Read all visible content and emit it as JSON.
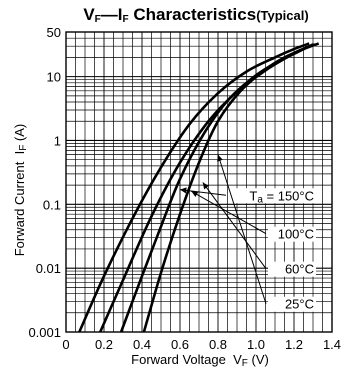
{
  "chart_data": {
    "type": "line",
    "title": {
      "vf": "V",
      "vf_sub": "F",
      "dash": "—",
      "if": "I",
      "if_sub": "F",
      "rest": "Characteristics",
      "note": "(Typical)"
    },
    "xlabel": {
      "text": "Forward Voltage",
      "sym": "V",
      "sym_sub": "F",
      "unit": "(V)"
    },
    "ylabel": {
      "text": "Forward Current",
      "sym": "I",
      "sym_sub": "F",
      "unit": "(A)"
    },
    "x_scale": "linear",
    "y_scale": "log",
    "xlim": [
      0,
      1.4
    ],
    "ylim": [
      0.001,
      50
    ],
    "x_ticks": [
      {
        "value": 0,
        "label": "0"
      },
      {
        "value": 0.2,
        "label": "0.2"
      },
      {
        "value": 0.4,
        "label": "0.4"
      },
      {
        "value": 0.6,
        "label": "0.6"
      },
      {
        "value": 0.8,
        "label": "0.8"
      },
      {
        "value": 1.0,
        "label": "1.0"
      },
      {
        "value": 1.2,
        "label": "1.2"
      },
      {
        "value": 1.4,
        "label": "1.4"
      }
    ],
    "y_ticks": [
      {
        "value": 0.001,
        "label": "0.001"
      },
      {
        "value": 0.01,
        "label": "0.01"
      },
      {
        "value": 0.1,
        "label": "0.1"
      },
      {
        "value": 1,
        "label": "1"
      },
      {
        "value": 10,
        "label": "10"
      },
      {
        "value": 50,
        "label": "50"
      }
    ],
    "grid": true,
    "series": [
      {
        "name": "150°C",
        "label_prefix": "T",
        "label_prefix_sub": "a",
        "label_eq": " = ",
        "x": [
          0.07,
          0.2,
          0.35,
          0.5,
          0.65,
          0.8,
          0.95,
          1.1,
          1.2,
          1.28
        ],
        "y": [
          0.001,
          0.0075,
          0.06,
          0.38,
          1.8,
          5.5,
          12,
          20,
          27,
          33
        ]
      },
      {
        "name": "100°C",
        "x": [
          0.18,
          0.3,
          0.45,
          0.6,
          0.75,
          0.9,
          1.05,
          1.15,
          1.24,
          1.3
        ],
        "y": [
          0.001,
          0.0065,
          0.065,
          0.45,
          2.0,
          5.8,
          12.5,
          19,
          26,
          32
        ]
      },
      {
        "name": "60°C",
        "x": [
          0.29,
          0.4,
          0.5,
          0.6,
          0.72,
          0.85,
          1.0,
          1.12,
          1.22,
          1.31
        ],
        "y": [
          0.001,
          0.0075,
          0.045,
          0.25,
          1.2,
          4.2,
          10.5,
          17.5,
          25,
          32
        ]
      },
      {
        "name": "25°C",
        "x": [
          0.41,
          0.5,
          0.6,
          0.7,
          0.8,
          0.92,
          1.05,
          1.15,
          1.25,
          1.33
        ],
        "y": [
          0.001,
          0.0085,
          0.07,
          0.45,
          2.0,
          6.0,
          13,
          20,
          27,
          33
        ]
      }
    ]
  }
}
